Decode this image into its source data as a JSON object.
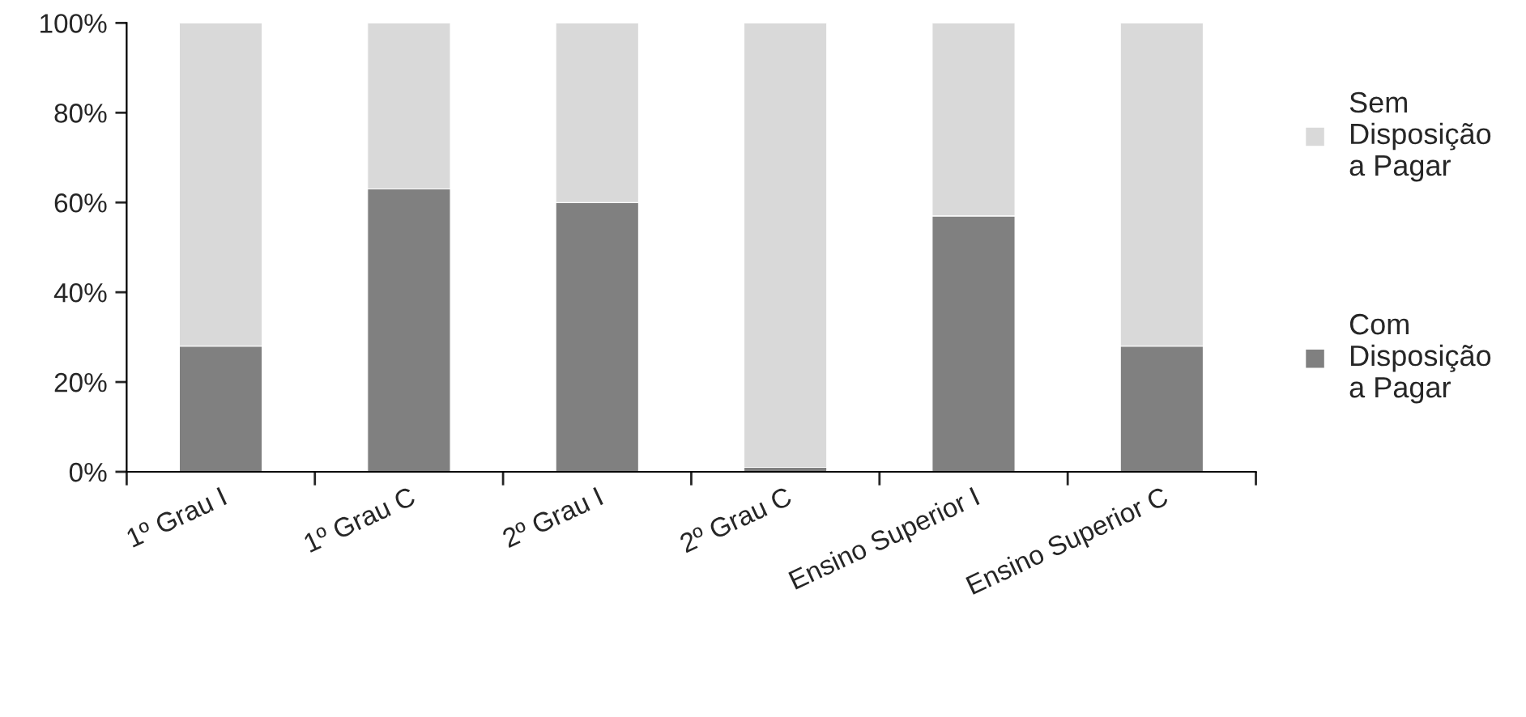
{
  "chart_data": {
    "type": "bar",
    "stacked": true,
    "categories": [
      "1º Grau I",
      "1º Grau C",
      "2º Grau I",
      "2º Grau C",
      "Ensino Superior I",
      "Ensino Superior C"
    ],
    "series": [
      {
        "name": "Com Disposição a Pagar",
        "color": "#808080",
        "values": [
          28,
          63,
          60,
          1,
          57,
          28
        ]
      },
      {
        "name": "Sem Disposição a Pagar",
        "color": "#d9d9d9",
        "values": [
          72,
          37,
          40,
          99,
          43,
          72
        ]
      }
    ],
    "ylim": [
      0,
      100
    ],
    "yticks": [
      {
        "value": 0,
        "label": "0%"
      },
      {
        "value": 20,
        "label": "20%"
      },
      {
        "value": 40,
        "label": "40%"
      },
      {
        "value": 60,
        "label": "60%"
      },
      {
        "value": 80,
        "label": "80%"
      },
      {
        "value": 100,
        "label": "100%"
      }
    ],
    "grid": false,
    "legend": "right"
  }
}
